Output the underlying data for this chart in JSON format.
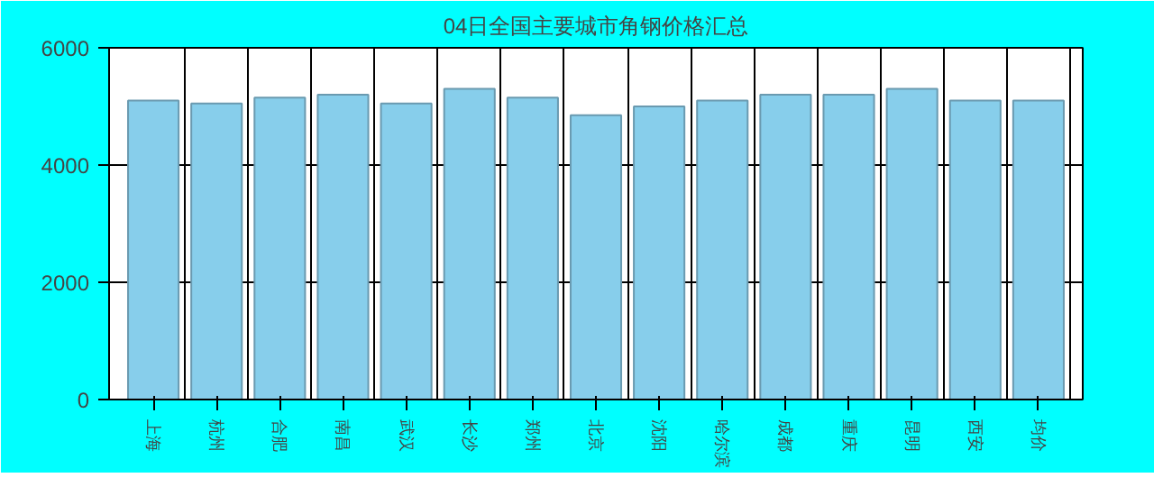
{
  "chart_data": {
    "type": "bar",
    "title": "04日全国主要城市角钢价格汇总",
    "categories": [
      "上海",
      "杭州",
      "合肥",
      "南昌",
      "武汉",
      "长沙",
      "郑州",
      "北京",
      "沈阳",
      "哈尔滨",
      "成都",
      "重庆",
      "昆明",
      "西安",
      "均价"
    ],
    "values": [
      5100,
      5050,
      5150,
      5200,
      5050,
      5300,
      5150,
      4850,
      5000,
      5100,
      5200,
      5200,
      5300,
      5100,
      5100
    ],
    "color": "#87ceeb",
    "ylim": [
      0,
      6000
    ],
    "yticks": [
      0,
      2000,
      4000,
      6000
    ],
    "grid": true
  }
}
